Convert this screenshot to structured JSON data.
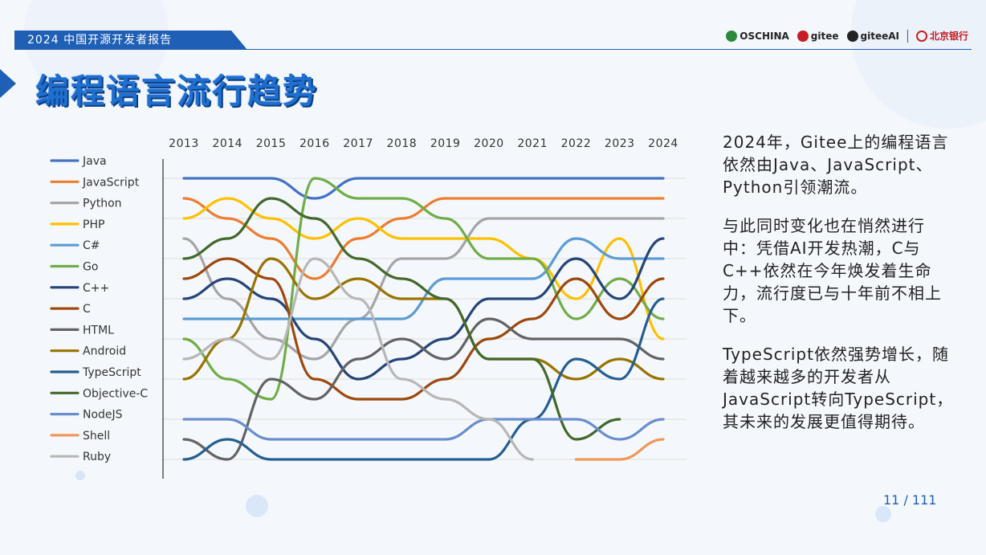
{
  "header": {
    "report_label": "2024 中国开源开发者报告",
    "logos": [
      {
        "name": "OSCHINA",
        "color": "#2a8a3c"
      },
      {
        "name": "gitee",
        "color": "#c71d23"
      },
      {
        "name": "giteeAI",
        "color": "#222222"
      },
      {
        "name": "北京银行",
        "color": "#c71d23"
      }
    ]
  },
  "title": "编程语言流行趋势",
  "chart_data": {
    "type": "line",
    "x": [
      2013,
      2014,
      2015,
      2016,
      2017,
      2018,
      2019,
      2020,
      2021,
      2022,
      2023,
      2024
    ],
    "x_labels": [
      "2013",
      "2014",
      "2015",
      "2016",
      "2017",
      "2018",
      "2019",
      "2020",
      "2021",
      "2022",
      "2023",
      "2024"
    ],
    "y_axis": "rank (1 = top)",
    "ylim": [
      1,
      15
    ],
    "series": [
      {
        "name": "Java",
        "color": "#4472c4",
        "values": [
          1,
          1,
          1,
          2,
          1,
          1,
          1,
          1,
          1,
          1,
          1,
          1
        ]
      },
      {
        "name": "JavaScript",
        "color": "#ed7d31",
        "values": [
          2,
          3,
          4,
          6,
          4,
          3,
          2,
          2,
          2,
          2,
          2,
          2
        ]
      },
      {
        "name": "Python",
        "color": "#a5a5a5",
        "values": [
          4,
          7,
          9,
          10,
          8,
          5,
          5,
          3,
          3,
          3,
          3,
          3
        ]
      },
      {
        "name": "PHP",
        "color": "#ffc000",
        "values": [
          3,
          2,
          3,
          4,
          3,
          4,
          4,
          4,
          5,
          7,
          4,
          9
        ]
      },
      {
        "name": "C#",
        "color": "#5b9bd5",
        "values": [
          8,
          8,
          8,
          8,
          8,
          8,
          6,
          6,
          6,
          4,
          5,
          5
        ]
      },
      {
        "name": "Go",
        "color": "#70ad47",
        "values": [
          9,
          11,
          12,
          1,
          2,
          2,
          3,
          5,
          5,
          8,
          6,
          8
        ]
      },
      {
        "name": "C++",
        "color": "#264478",
        "values": [
          7,
          6,
          7,
          9,
          11,
          10,
          9,
          7,
          7,
          5,
          7,
          4
        ]
      },
      {
        "name": "C",
        "color": "#9e480e",
        "values": [
          6,
          5,
          6,
          11,
          12,
          12,
          11,
          9,
          8,
          6,
          8,
          6
        ]
      },
      {
        "name": "HTML",
        "color": "#636363",
        "values": [
          14,
          15,
          11,
          12,
          10,
          9,
          10,
          8,
          9,
          9,
          9,
          10
        ]
      },
      {
        "name": "Android",
        "color": "#997300",
        "values": [
          11,
          9,
          5,
          7,
          6,
          7,
          7,
          10,
          10,
          11,
          10,
          11
        ]
      },
      {
        "name": "TypeScript",
        "color": "#255e91",
        "values": [
          15,
          14,
          15,
          15,
          15,
          15,
          15,
          15,
          13,
          10,
          11,
          7
        ]
      },
      {
        "name": "Objective-C",
        "color": "#43682b",
        "values": [
          5,
          4,
          2,
          3,
          5,
          6,
          7,
          10,
          10,
          14,
          13,
          null
        ]
      },
      {
        "name": "NodeJS",
        "color": "#698ed0",
        "values": [
          13,
          13,
          14,
          14,
          14,
          14,
          14,
          13,
          13,
          13,
          14,
          13
        ]
      },
      {
        "name": "Shell",
        "color": "#f1975a",
        "values": [
          null,
          null,
          null,
          null,
          null,
          null,
          null,
          null,
          null,
          15,
          15,
          14
        ]
      },
      {
        "name": "Ruby",
        "color": "#b7b7b7",
        "values": [
          10,
          9,
          10,
          5,
          7,
          11,
          12,
          13,
          15,
          null,
          null,
          null
        ]
      }
    ]
  },
  "text_panel": {
    "paragraphs": [
      "2024年，Gitee上的编程语言依然由Java、JavaScript、Python引领潮流。",
      "与此同时变化也在悄然进行中：凭借AI开发热潮，C与C++依然在今年焕发着生命力，流行度已与十年前不相上下。",
      "TypeScript依然强势增长，随着越来越多的开发者从JavaScript转向TypeScript，其未来的发展更值得期待。"
    ]
  },
  "page_number": "11 / 111"
}
